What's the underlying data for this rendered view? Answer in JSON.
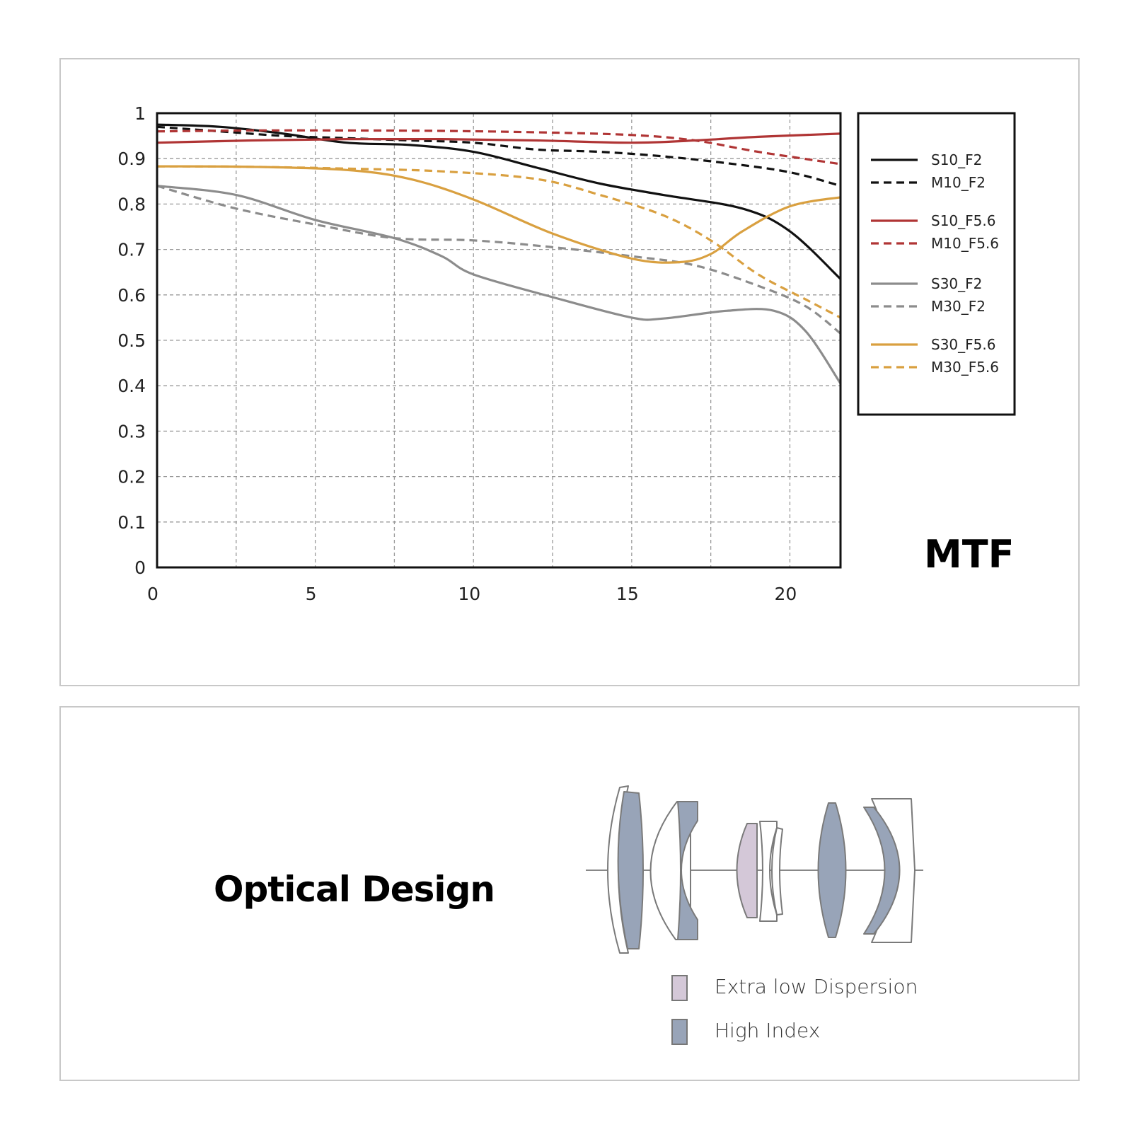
{
  "chart_data": {
    "type": "line",
    "title": "MTF",
    "xlabel": "",
    "ylabel": "",
    "xlim": [
      0,
      21.6
    ],
    "ylim": [
      0,
      1
    ],
    "x_ticks": [
      "0",
      "5",
      "10",
      "15",
      "20"
    ],
    "x_tick_values": [
      0,
      5,
      10,
      15,
      20
    ],
    "y_ticks": [
      "0",
      "0.1",
      "0.2",
      "0.3",
      "0.4",
      "0.5",
      "0.6",
      "0.7",
      "0.8",
      "0.9",
      "1"
    ],
    "y_tick_values": [
      0,
      0.1,
      0.2,
      0.3,
      0.4,
      0.5,
      0.6,
      0.7,
      0.8,
      0.9,
      1
    ],
    "grid_x": [
      2.5,
      5,
      7.5,
      10,
      12.5,
      15,
      17.5,
      20
    ],
    "grid": true,
    "legend_position": "right",
    "series": [
      {
        "name": "S10_F2",
        "color": "#111111",
        "dashed": false,
        "x": [
          0,
          2,
          4,
          6,
          8,
          10,
          12,
          14,
          16,
          18.5,
          20,
          21.6
        ],
        "y": [
          0.975,
          0.97,
          0.955,
          0.935,
          0.93,
          0.915,
          0.88,
          0.845,
          0.82,
          0.79,
          0.74,
          0.635
        ]
      },
      {
        "name": "M10_F2",
        "color": "#111111",
        "dashed": false,
        "dash": true,
        "x": [
          0,
          2,
          4,
          6,
          8,
          10,
          12,
          14,
          16,
          18,
          20,
          21.6
        ],
        "y": [
          0.97,
          0.96,
          0.95,
          0.945,
          0.94,
          0.935,
          0.92,
          0.915,
          0.905,
          0.89,
          0.87,
          0.84
        ]
      },
      {
        "name": "S10_F5.6",
        "color": "#b03535",
        "dashed": false,
        "x": [
          0,
          3,
          6,
          9,
          12,
          15,
          17,
          19,
          21.6
        ],
        "y": [
          0.935,
          0.94,
          0.943,
          0.943,
          0.94,
          0.935,
          0.94,
          0.948,
          0.955
        ]
      },
      {
        "name": "M10_F5.6",
        "color": "#b03535",
        "dashed": true,
        "x": [
          0,
          3,
          6,
          9,
          12,
          15,
          17,
          19,
          21.6
        ],
        "y": [
          0.96,
          0.962,
          0.962,
          0.961,
          0.958,
          0.952,
          0.94,
          0.915,
          0.888
        ]
      },
      {
        "name": "S30_F2",
        "color": "#8c8c8c",
        "dashed": false,
        "x": [
          0,
          2.5,
          5,
          7.5,
          9,
          10,
          12.5,
          15,
          16,
          18,
          19.5,
          20.5,
          21.6
        ],
        "y": [
          0.84,
          0.82,
          0.765,
          0.725,
          0.685,
          0.645,
          0.595,
          0.55,
          0.548,
          0.565,
          0.565,
          0.52,
          0.405
        ]
      },
      {
        "name": "M30_F2",
        "color": "#8c8c8c",
        "dashed": true,
        "x": [
          0,
          2.5,
          5,
          7.5,
          10,
          12.5,
          15,
          17,
          19,
          20.5,
          21.6
        ],
        "y": [
          0.84,
          0.79,
          0.755,
          0.725,
          0.72,
          0.705,
          0.685,
          0.665,
          0.62,
          0.575,
          0.515
        ]
      },
      {
        "name": "S30_F5.6",
        "color": "#d9a040",
        "dashed": false,
        "x": [
          0,
          3,
          6,
          8,
          10,
          12.5,
          15,
          16.5,
          17.5,
          18.5,
          20,
          21.6
        ],
        "y": [
          0.883,
          0.882,
          0.875,
          0.855,
          0.81,
          0.735,
          0.68,
          0.672,
          0.69,
          0.74,
          0.795,
          0.815
        ]
      },
      {
        "name": "M30_F5.6",
        "color": "#d9a040",
        "dashed": true,
        "x": [
          0,
          3,
          6,
          9,
          12,
          14,
          16,
          17.5,
          19,
          20.5,
          21.6
        ],
        "y": [
          0.883,
          0.882,
          0.878,
          0.872,
          0.855,
          0.82,
          0.775,
          0.72,
          0.645,
          0.59,
          0.55
        ]
      }
    ]
  },
  "optical": {
    "title": "Optical Design",
    "legend": [
      {
        "label": "Extra low Dispersion",
        "color": "#d4c8d8"
      },
      {
        "label": "High Index",
        "color": "#98a4b8"
      }
    ]
  },
  "lens_colors": {
    "ed": "#d4c8d8",
    "hi": "#98a4b8",
    "plain": "#ffffff",
    "stroke": "#7a7a7a",
    "axis": "#888888"
  }
}
